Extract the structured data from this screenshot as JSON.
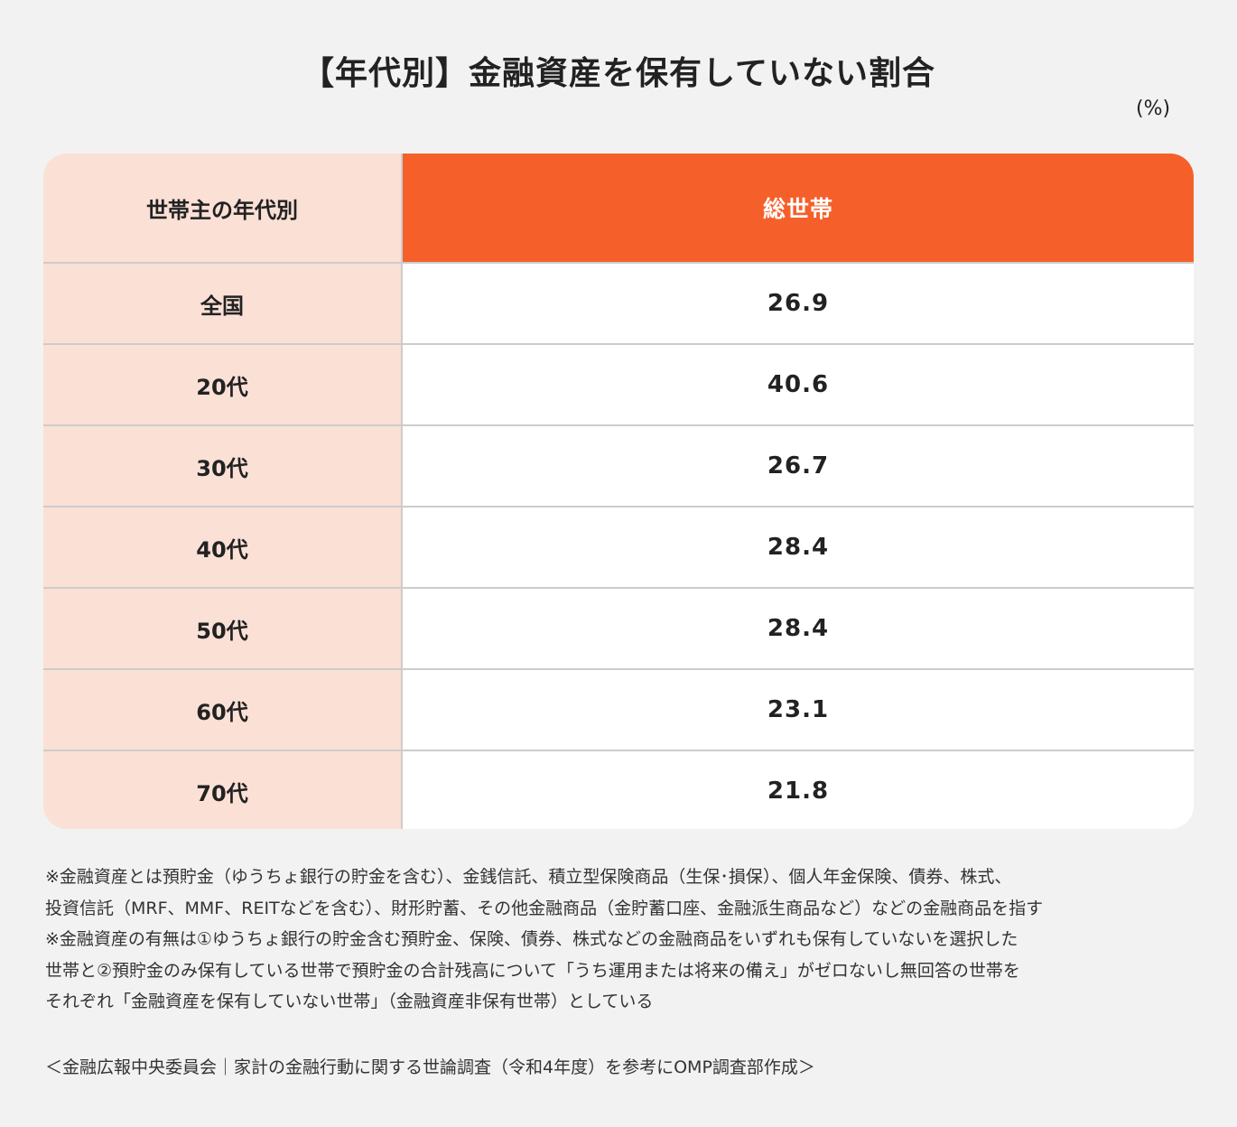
{
  "title": "【年代別】金融資産を保有していない割合",
  "unit": "(%)",
  "table": {
    "header": {
      "left": "世帯主の年代別",
      "right": "総世帯"
    },
    "rows": [
      {
        "label": "全国",
        "value": "26.9"
      },
      {
        "label": "20代",
        "value": "40.6"
      },
      {
        "label": "30代",
        "value": "26.7"
      },
      {
        "label": "40代",
        "value": "28.4"
      },
      {
        "label": "50代",
        "value": "28.4"
      },
      {
        "label": "60代",
        "value": "23.1"
      },
      {
        "label": "70代",
        "value": "21.8"
      }
    ]
  },
  "notes": [
    "※金融資産とは預貯金（ゆうちょ銀行の貯金を含む）、金銭信託、積立型保険商品（生保･損保）、個人年金保険、債券、株式、",
    "投資信託（MRF、MMF、REITなどを含む）、財形貯蓄、その他金融商品（金貯蓄口座、金融派生商品など）などの金融商品を指す",
    "※金融資産の有無は①ゆうちょ銀行の貯金含む預貯金、保険、債券、株式などの金融商品をいずれも保有していないを選択した",
    "世帯と②預貯金のみ保有している世帯で預貯金の合計残高について「うち運用または将来の備え」がゼロないし無回答の世帯を",
    "それぞれ「金融資産を保有していない世帯」（金融資産非保有世帯）としている"
  ],
  "source": "＜金融広報中央委員会｜家計の金融行動に関する世論調査（令和4年度）を参考にOMP調査部作成＞",
  "colors": {
    "accent": "#f5602a",
    "left_column_bg": "#fbe0d6",
    "background": "#f2f2f2",
    "divider": "#cccccc"
  },
  "chart_data": {
    "type": "table",
    "title": "【年代別】金融資産を保有していない割合",
    "unit": "%",
    "columns": [
      "世帯主の年代別",
      "総世帯"
    ],
    "categories": [
      "全国",
      "20代",
      "30代",
      "40代",
      "50代",
      "60代",
      "70代"
    ],
    "series": [
      {
        "name": "総世帯",
        "values": [
          26.9,
          40.6,
          26.7,
          28.4,
          28.4,
          23.1,
          21.8
        ]
      }
    ]
  }
}
